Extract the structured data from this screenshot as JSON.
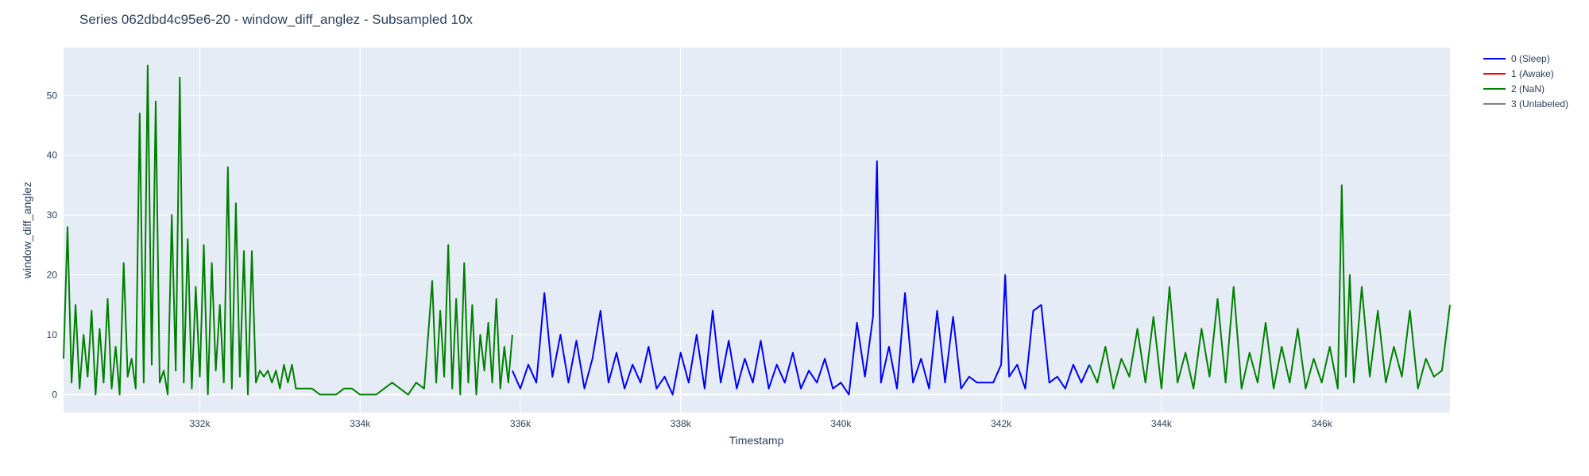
{
  "chart_data": {
    "type": "line",
    "title": "Series 062dbd4c95e6-20 - window_diff_anglez - Subsampled 10x",
    "xlabel": "Timestamp",
    "ylabel": "window_diff_anglez",
    "xlim": [
      330300,
      347600
    ],
    "ylim": [
      -3,
      58
    ],
    "x_ticks": [
      332000,
      334000,
      336000,
      338000,
      340000,
      342000,
      344000,
      346000
    ],
    "x_tick_labels": [
      "332k",
      "334k",
      "336k",
      "338k",
      "340k",
      "342k",
      "344k",
      "346k"
    ],
    "y_ticks": [
      0,
      10,
      20,
      30,
      40,
      50
    ],
    "y_tick_labels": [
      "0",
      "10",
      "20",
      "30",
      "40",
      "50"
    ],
    "grid": true,
    "plot_background": "#e5ecf6",
    "legend_position": "top-right",
    "legend": [
      {
        "name": "0 (Sleep)",
        "color": "#0000ff"
      },
      {
        "name": "1 (Awake)",
        "color": "#ff0000"
      },
      {
        "name": "2 (NaN)",
        "color": "#008000"
      },
      {
        "name": "3 (Unlabeled)",
        "color": "#808080"
      }
    ],
    "series": [
      {
        "name": "2 (NaN)",
        "color": "#008000",
        "x": [
          330300,
          330350,
          330400,
          330450,
          330500,
          330550,
          330600,
          330650,
          330700,
          330750,
          330800,
          330850,
          330900,
          330950,
          331000,
          331050,
          331100,
          331150,
          331200,
          331250,
          331300,
          331350,
          331400,
          331450,
          331500,
          331550,
          331600,
          331650,
          331700,
          331750,
          331800,
          331850,
          331900,
          331950,
          332000,
          332050,
          332100,
          332150,
          332200,
          332250,
          332300,
          332350,
          332400,
          332450,
          332500,
          332550,
          332600,
          332650,
          332700,
          332750,
          332800,
          332850,
          332900,
          332950,
          333000,
          333050,
          333100,
          333150,
          333200,
          333300,
          333400,
          333500,
          333600,
          333700,
          333800,
          333900,
          334000,
          334100,
          334200,
          334300,
          334400,
          334500,
          334600,
          334700,
          334800,
          334900,
          334950,
          335000,
          335050,
          335100,
          335150,
          335200,
          335250,
          335300,
          335350,
          335400,
          335450,
          335500,
          335550,
          335600,
          335650,
          335700,
          335750,
          335800,
          335850,
          335900
        ],
        "values": [
          6,
          28,
          2,
          15,
          1,
          10,
          3,
          14,
          0,
          11,
          2,
          16,
          1,
          8,
          0,
          22,
          3,
          6,
          1,
          47,
          2,
          55,
          5,
          49,
          2,
          4,
          0,
          30,
          4,
          53,
          2,
          26,
          1,
          18,
          3,
          25,
          0,
          22,
          4,
          15,
          2,
          38,
          1,
          32,
          3,
          24,
          0,
          24,
          2,
          4,
          3,
          4,
          2,
          4,
          1,
          5,
          2,
          5,
          1,
          1,
          1,
          0,
          0,
          0,
          1,
          1,
          0,
          0,
          0,
          1,
          2,
          1,
          0,
          2,
          1,
          19,
          2,
          14,
          3,
          25,
          1,
          16,
          0,
          22,
          2,
          15,
          0,
          10,
          4,
          12,
          2,
          16,
          1,
          8,
          2,
          10
        ]
      },
      {
        "name": "0 (Sleep)",
        "color": "#0000ff",
        "x": [
          335900,
          336000,
          336100,
          336200,
          336300,
          336400,
          336500,
          336600,
          336700,
          336800,
          336900,
          337000,
          337100,
          337200,
          337300,
          337400,
          337500,
          337600,
          337700,
          337800,
          337900,
          338000,
          338100,
          338200,
          338300,
          338400,
          338500,
          338600,
          338700,
          338800,
          338900,
          339000,
          339100,
          339200,
          339300,
          339400,
          339500,
          339600,
          339700,
          339800,
          339900,
          340000,
          340100,
          340200,
          340300,
          340400,
          340450,
          340500,
          340550,
          340600,
          340700,
          340800,
          340900,
          341000,
          341100,
          341200,
          341300,
          341400,
          341500,
          341600,
          341700,
          341800,
          341900,
          342000,
          342050,
          342100,
          342200,
          342300,
          342400,
          342500,
          342600,
          342700,
          342800,
          342900,
          343000,
          343100
        ],
        "values": [
          4,
          1,
          5,
          2,
          17,
          3,
          10,
          2,
          9,
          1,
          6,
          14,
          2,
          7,
          1,
          5,
          2,
          8,
          1,
          3,
          0,
          7,
          2,
          10,
          1,
          14,
          2,
          9,
          1,
          6,
          2,
          9,
          1,
          5,
          2,
          7,
          1,
          4,
          2,
          6,
          1,
          2,
          0,
          12,
          3,
          13,
          39,
          2,
          5,
          8,
          1,
          17,
          2,
          6,
          1,
          14,
          2,
          13,
          1,
          3,
          2,
          2,
          2,
          5,
          20,
          3,
          5,
          1,
          14,
          15,
          2,
          3,
          1,
          5,
          2,
          5
        ]
      },
      {
        "name": "2 (NaN)",
        "color": "#008000",
        "x": [
          343100,
          343200,
          343300,
          343400,
          343500,
          343600,
          343700,
          343800,
          343900,
          344000,
          344100,
          344200,
          344300,
          344400,
          344500,
          344600,
          344700,
          344800,
          344900,
          345000,
          345100,
          345200,
          345300,
          345400,
          345500,
          345600,
          345700,
          345800,
          345900,
          346000,
          346100,
          346200,
          346250,
          346300,
          346350,
          346400,
          346500,
          346600,
          346700,
          346800,
          346900,
          347000,
          347100,
          347200,
          347300,
          347400,
          347500,
          347600
        ],
        "values": [
          5,
          2,
          8,
          1,
          6,
          3,
          11,
          2,
          13,
          1,
          18,
          2,
          7,
          1,
          11,
          3,
          16,
          2,
          18,
          1,
          7,
          2,
          12,
          1,
          8,
          2,
          11,
          1,
          6,
          2,
          8,
          1,
          35,
          3,
          20,
          2,
          18,
          3,
          14,
          2,
          8,
          3,
          14,
          1,
          6,
          3,
          4,
          15
        ]
      }
    ]
  }
}
